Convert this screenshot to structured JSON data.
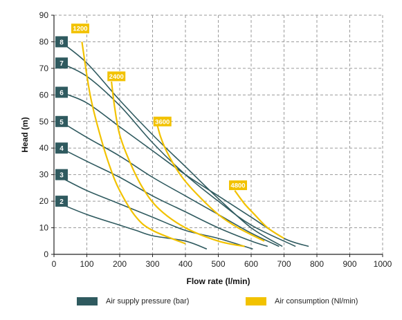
{
  "colors": {
    "pressure": "#2f5a5f",
    "air": "#f2c200",
    "grid": "#9a9a9a",
    "axis": "#222222"
  },
  "chart_data": {
    "type": "line",
    "xlabel": "Flow rate (l/min)",
    "ylabel": "Head (m)",
    "xlim": [
      0,
      1000
    ],
    "ylim": [
      0,
      90
    ],
    "xticks": [
      0,
      100,
      200,
      300,
      400,
      500,
      600,
      700,
      800,
      900,
      1000
    ],
    "yticks": [
      0,
      10,
      20,
      30,
      40,
      50,
      60,
      70,
      80,
      90
    ],
    "grid": true,
    "legend": [
      {
        "label": "Air supply pressure (bar)",
        "color_key": "pressure"
      },
      {
        "label": "Air consumption (Nl/min)",
        "color_key": "air"
      }
    ],
    "pressure_series": [
      {
        "name": "8",
        "values": [
          [
            20,
            80
          ],
          [
            100,
            72
          ],
          [
            200,
            58
          ],
          [
            300,
            45
          ],
          [
            400,
            33
          ],
          [
            500,
            21
          ],
          [
            600,
            10
          ],
          [
            695,
            3
          ]
        ]
      },
      {
        "name": "7",
        "values": [
          [
            20,
            72
          ],
          [
            100,
            67
          ],
          [
            200,
            56
          ],
          [
            300,
            42
          ],
          [
            400,
            30
          ],
          [
            500,
            20
          ],
          [
            600,
            11
          ],
          [
            735,
            3
          ]
        ]
      },
      {
        "name": "6",
        "values": [
          [
            20,
            61
          ],
          [
            100,
            57
          ],
          [
            200,
            48
          ],
          [
            300,
            39
          ],
          [
            400,
            30
          ],
          [
            500,
            22
          ],
          [
            600,
            14
          ],
          [
            700,
            6
          ],
          [
            775,
            3
          ]
        ]
      },
      {
        "name": "5",
        "values": [
          [
            20,
            50
          ],
          [
            100,
            44
          ],
          [
            200,
            37
          ],
          [
            300,
            29
          ],
          [
            400,
            22
          ],
          [
            500,
            15
          ],
          [
            600,
            8
          ],
          [
            685,
            3
          ]
        ]
      },
      {
        "name": "4",
        "values": [
          [
            20,
            40
          ],
          [
            100,
            35
          ],
          [
            200,
            29
          ],
          [
            300,
            22
          ],
          [
            400,
            16
          ],
          [
            500,
            10
          ],
          [
            600,
            5
          ],
          [
            650,
            3
          ]
        ]
      },
      {
        "name": "3",
        "values": [
          [
            20,
            29
          ],
          [
            100,
            24
          ],
          [
            200,
            19
          ],
          [
            300,
            14
          ],
          [
            400,
            9
          ],
          [
            500,
            6
          ],
          [
            605,
            2
          ]
        ]
      },
      {
        "name": "2",
        "values": [
          [
            20,
            19
          ],
          [
            100,
            15
          ],
          [
            200,
            11
          ],
          [
            250,
            9
          ],
          [
            300,
            7
          ],
          [
            400,
            5
          ],
          [
            465,
            2
          ]
        ]
      }
    ],
    "air_series": [
      {
        "name": "1200",
        "values": [
          [
            85,
            80
          ],
          [
            110,
            60
          ],
          [
            140,
            45
          ],
          [
            170,
            33
          ],
          [
            200,
            24
          ],
          [
            250,
            14
          ],
          [
            300,
            9
          ],
          [
            400,
            4
          ]
        ]
      },
      {
        "name": "2400",
        "values": [
          [
            175,
            65
          ],
          [
            185,
            55
          ],
          [
            200,
            45
          ],
          [
            230,
            35
          ],
          [
            270,
            25
          ],
          [
            320,
            17
          ],
          [
            400,
            10
          ],
          [
            500,
            5
          ],
          [
            580,
            3
          ]
        ]
      },
      {
        "name": "3600",
        "values": [
          [
            310,
            51
          ],
          [
            325,
            44
          ],
          [
            350,
            37
          ],
          [
            390,
            29
          ],
          [
            440,
            22
          ],
          [
            500,
            15
          ],
          [
            560,
            10
          ],
          [
            640,
            5
          ]
        ]
      },
      {
        "name": "4800",
        "values": [
          [
            550,
            24
          ],
          [
            580,
            19
          ],
          [
            610,
            15
          ],
          [
            650,
            10
          ],
          [
            700,
            6
          ]
        ]
      }
    ],
    "pressure_labels": [
      {
        "text": "8",
        "y": 80
      },
      {
        "text": "7",
        "y": 72
      },
      {
        "text": "6",
        "y": 61
      },
      {
        "text": "5",
        "y": 50
      },
      {
        "text": "4",
        "y": 40
      },
      {
        "text": "3",
        "y": 30
      },
      {
        "text": "2",
        "y": 20
      }
    ],
    "air_labels": [
      {
        "text": "1200",
        "x": 80,
        "y": 85
      },
      {
        "text": "2400",
        "x": 190,
        "y": 67
      },
      {
        "text": "3600",
        "x": 330,
        "y": 50
      },
      {
        "text": "4800",
        "x": 560,
        "y": 26
      }
    ]
  }
}
